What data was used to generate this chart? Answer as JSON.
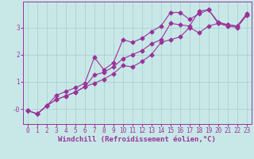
{
  "xlabel": "Windchill (Refroidissement éolien,°C)",
  "bg_color": "#c8e8e8",
  "line_color": "#993399",
  "grid_color": "#a8cccc",
  "xlim": [
    -0.5,
    23.5
  ],
  "ylim": [
    -0.55,
    3.95
  ],
  "yticks": [
    0,
    1,
    2,
    3
  ],
  "ytick_labels": [
    "-0",
    "1",
    "2",
    "3"
  ],
  "xticks": [
    0,
    1,
    2,
    3,
    4,
    5,
    6,
    7,
    8,
    9,
    10,
    11,
    12,
    13,
    14,
    15,
    16,
    17,
    18,
    19,
    20,
    21,
    22,
    23
  ],
  "series": [
    [
      [
        0,
        -0.05
      ],
      [
        1,
        -0.18
      ],
      [
        2,
        0.12
      ],
      [
        3,
        0.35
      ],
      [
        4,
        0.48
      ],
      [
        5,
        0.62
      ],
      [
        6,
        0.82
      ],
      [
        7,
        0.95
      ],
      [
        8,
        1.1
      ],
      [
        9,
        1.3
      ],
      [
        10,
        1.6
      ],
      [
        11,
        1.55
      ],
      [
        12,
        1.75
      ],
      [
        13,
        2.0
      ],
      [
        14,
        2.45
      ],
      [
        15,
        2.55
      ],
      [
        16,
        2.65
      ],
      [
        17,
        3.0
      ],
      [
        18,
        2.8
      ],
      [
        19,
        3.05
      ],
      [
        20,
        3.15
      ],
      [
        21,
        3.05
      ],
      [
        22,
        3.0
      ],
      [
        23,
        3.45
      ]
    ],
    [
      [
        0,
        -0.05
      ],
      [
        1,
        -0.18
      ],
      [
        2,
        0.12
      ],
      [
        3,
        0.5
      ],
      [
        4,
        0.65
      ],
      [
        5,
        0.78
      ],
      [
        6,
        0.95
      ],
      [
        7,
        1.9
      ],
      [
        8,
        1.45
      ],
      [
        9,
        1.7
      ],
      [
        10,
        2.55
      ],
      [
        11,
        2.45
      ],
      [
        12,
        2.6
      ],
      [
        13,
        2.85
      ],
      [
        14,
        3.05
      ],
      [
        15,
        3.55
      ],
      [
        16,
        3.55
      ],
      [
        17,
        3.3
      ],
      [
        18,
        3.5
      ],
      [
        19,
        3.65
      ],
      [
        20,
        3.2
      ],
      [
        21,
        3.1
      ],
      [
        22,
        3.05
      ],
      [
        23,
        3.5
      ]
    ],
    [
      [
        0,
        -0.05
      ],
      [
        1,
        -0.18
      ],
      [
        2,
        0.12
      ],
      [
        3,
        0.35
      ],
      [
        4,
        0.48
      ],
      [
        5,
        0.62
      ],
      [
        6,
        0.82
      ],
      [
        7,
        1.25
      ],
      [
        8,
        1.35
      ],
      [
        9,
        1.55
      ],
      [
        10,
        1.85
      ],
      [
        11,
        2.0
      ],
      [
        12,
        2.15
      ],
      [
        13,
        2.4
      ],
      [
        14,
        2.55
      ],
      [
        15,
        3.15
      ],
      [
        16,
        3.1
      ],
      [
        17,
        3.05
      ],
      [
        18,
        3.6
      ],
      [
        19,
        3.65
      ],
      [
        20,
        3.15
      ],
      [
        21,
        3.1
      ],
      [
        22,
        3.05
      ],
      [
        23,
        3.45
      ]
    ]
  ],
  "marker": "D",
  "markersize": 2.5,
  "linewidth": 0.8,
  "xlabel_fontsize": 6.5,
  "tick_fontsize": 5.5
}
